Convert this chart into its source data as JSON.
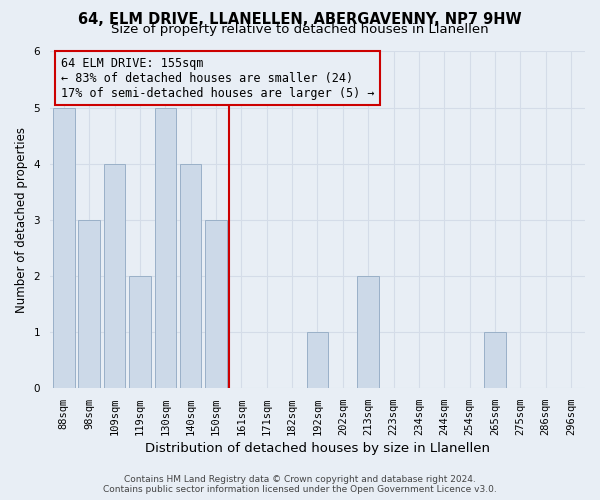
{
  "title": "64, ELM DRIVE, LLANELLEN, ABERGAVENNY, NP7 9HW",
  "subtitle": "Size of property relative to detached houses in Llanellen",
  "xlabel": "Distribution of detached houses by size in Llanellen",
  "ylabel": "Number of detached properties",
  "footer_line1": "Contains HM Land Registry data © Crown copyright and database right 2024.",
  "footer_line2": "Contains public sector information licensed under the Open Government Licence v3.0.",
  "categories": [
    "88sqm",
    "98sqm",
    "109sqm",
    "119sqm",
    "130sqm",
    "140sqm",
    "150sqm",
    "161sqm",
    "171sqm",
    "182sqm",
    "192sqm",
    "202sqm",
    "213sqm",
    "223sqm",
    "234sqm",
    "244sqm",
    "254sqm",
    "265sqm",
    "275sqm",
    "286sqm",
    "296sqm"
  ],
  "values": [
    5,
    3,
    4,
    2,
    5,
    4,
    3,
    0,
    0,
    0,
    1,
    0,
    2,
    0,
    0,
    0,
    0,
    1,
    0,
    0,
    0
  ],
  "bar_color": "#ccd9e8",
  "bar_edge_color": "#9ab0c8",
  "grid_color": "#d4dce8",
  "annotation_text": "64 ELM DRIVE: 155sqm\n← 83% of detached houses are smaller (24)\n17% of semi-detached houses are larger (5) →",
  "annotation_box_color": "#cc0000",
  "vline_x": 6.5,
  "vline_color": "#cc0000",
  "ylim": [
    0,
    6
  ],
  "yticks": [
    0,
    1,
    2,
    3,
    4,
    5,
    6
  ],
  "background_color": "#e8eef5",
  "title_fontsize": 10.5,
  "subtitle_fontsize": 9.5,
  "xlabel_fontsize": 9.5,
  "ylabel_fontsize": 8.5,
  "tick_fontsize": 7.5,
  "annotation_fontsize": 8.5,
  "footer_fontsize": 6.5
}
